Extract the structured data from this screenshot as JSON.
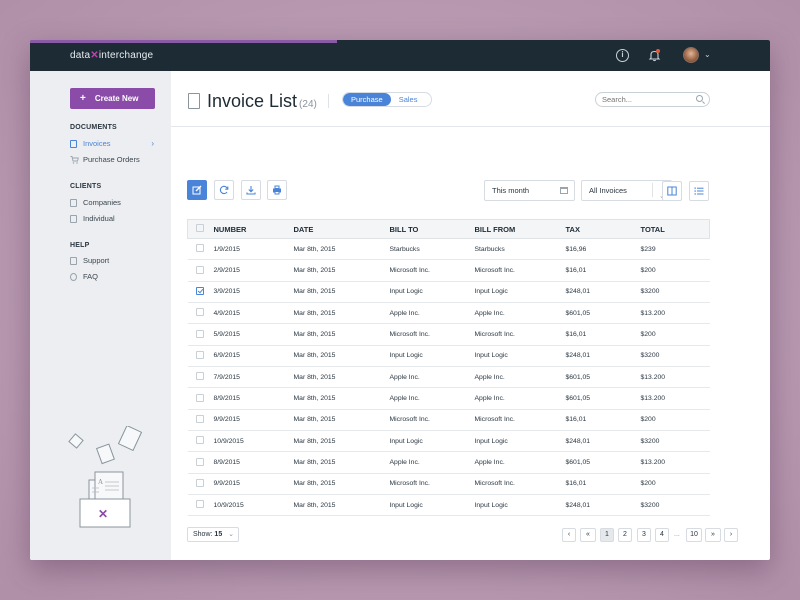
{
  "app": {
    "logo_left": "data",
    "logo_x": "✕",
    "logo_right": "interchange"
  },
  "topbar": {
    "info_glyph": "i",
    "avatar_chevron": "⌄"
  },
  "sidebar": {
    "create_label": "Create New",
    "sections": [
      {
        "title": "DOCUMENTS",
        "items": [
          {
            "label": "Invoices",
            "active": true
          },
          {
            "label": "Purchase Orders",
            "active": false
          }
        ]
      },
      {
        "title": "CLIENTS",
        "items": [
          {
            "label": "Companies"
          },
          {
            "label": "Individual"
          }
        ]
      },
      {
        "title": "HELP",
        "items": [
          {
            "label": "Support"
          },
          {
            "label": "FAQ"
          }
        ]
      }
    ]
  },
  "header": {
    "title": "Invoice List",
    "count": "(24)",
    "segments": [
      "Purchase",
      "Sales"
    ],
    "search_placeholder": "Search..."
  },
  "toolbar": {
    "period": "This month",
    "filter": "All Invoices"
  },
  "table": {
    "columns": [
      "NUMBER",
      "DATE",
      "BILL TO",
      "BILL FROM",
      "TAX",
      "TOTAL"
    ],
    "rows": [
      {
        "checked": false,
        "cells": [
          "1/9/2015",
          "Mar 8th, 2015",
          "Starbucks",
          "Starbucks",
          "$16,96",
          "$239"
        ]
      },
      {
        "checked": false,
        "cells": [
          "2/9/2015",
          "Mar 8th, 2015",
          "Microsoft Inc.",
          "Microsoft Inc.",
          "$16,01",
          "$200"
        ]
      },
      {
        "checked": true,
        "cells": [
          "3/9/2015",
          "Mar 8th, 2015",
          "Input Logic",
          "Input Logic",
          "$248,01",
          "$3200"
        ]
      },
      {
        "checked": false,
        "cells": [
          "4/9/2015",
          "Mar 8th, 2015",
          "Apple Inc.",
          "Apple Inc.",
          "$601,05",
          "$13.200"
        ]
      },
      {
        "checked": false,
        "cells": [
          "5/9/2015",
          "Mar 8th, 2015",
          "Microsoft Inc.",
          "Microsoft Inc.",
          "$16,01",
          "$200"
        ]
      },
      {
        "checked": false,
        "cells": [
          "6/9/2015",
          "Mar 8th, 2015",
          "Input Logic",
          "Input Logic",
          "$248,01",
          "$3200"
        ]
      },
      {
        "checked": false,
        "cells": [
          "7/9/2015",
          "Mar 8th, 2015",
          "Apple Inc.",
          "Apple Inc.",
          "$601,05",
          "$13.200"
        ]
      },
      {
        "checked": false,
        "cells": [
          "8/9/2015",
          "Mar 8th, 2015",
          "Apple Inc.",
          "Apple Inc.",
          "$601,05",
          "$13.200"
        ]
      },
      {
        "checked": false,
        "cells": [
          "9/9/2015",
          "Mar 8th, 2015",
          "Microsoft Inc.",
          "Microsoft Inc.",
          "$16,01",
          "$200"
        ]
      },
      {
        "checked": false,
        "cells": [
          "10/9/2015",
          "Mar 8th, 2015",
          "Input Logic",
          "Input Logic",
          "$248,01",
          "$3200"
        ]
      },
      {
        "checked": false,
        "cells": [
          "8/9/2015",
          "Mar 8th, 2015",
          "Apple Inc.",
          "Apple Inc.",
          "$601,05",
          "$13.200"
        ]
      },
      {
        "checked": false,
        "cells": [
          "9/9/2015",
          "Mar 8th, 2015",
          "Microsoft Inc.",
          "Microsoft Inc.",
          "$16,01",
          "$200"
        ]
      },
      {
        "checked": false,
        "cells": [
          "10/9/2015",
          "Mar 8th, 2015",
          "Input Logic",
          "Input Logic",
          "$248,01",
          "$3200"
        ]
      }
    ]
  },
  "footer": {
    "show_label": "Show:",
    "show_value": "15",
    "pages": [
      "1",
      "2",
      "3",
      "4"
    ],
    "ellipsis": "...",
    "last_page": "10",
    "current_page": "1"
  },
  "colors": {
    "accent": "#4a84d8",
    "brand": "#8a4ca8",
    "topbar": "#1d2b35"
  },
  "icons": [
    "info-icon",
    "bell-icon",
    "avatar",
    "document-icon",
    "cart-icon",
    "building-icon",
    "user-icon",
    "chat-icon",
    "question-icon",
    "edit-icon",
    "refresh-icon",
    "download-icon",
    "print-icon",
    "calendar-icon",
    "columns-icon",
    "list-icon",
    "search-icon"
  ]
}
